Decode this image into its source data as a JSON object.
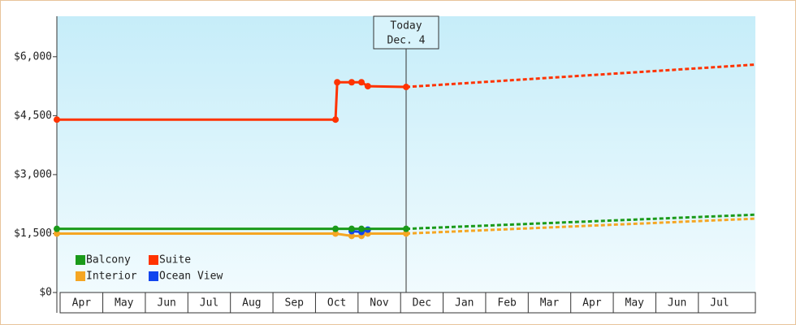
{
  "chart_data": {
    "type": "line",
    "categories": [
      "Apr",
      "May",
      "Jun",
      "Jul",
      "Aug",
      "Sep",
      "Oct",
      "Nov",
      "Dec",
      "Jan",
      "Feb",
      "Mar",
      "Apr",
      "May",
      "Jun",
      "Jul"
    ],
    "xlim": [
      -0.08,
      16.34
    ],
    "ylim": [
      0,
      7030
    ],
    "yticks": [
      {
        "value": 0,
        "label": "$0"
      },
      {
        "value": 1500,
        "label": "$1,500"
      },
      {
        "value": 3000,
        "label": "$3,000"
      },
      {
        "value": 4500,
        "label": "$4,500"
      },
      {
        "value": 6000,
        "label": "$6,000"
      }
    ],
    "grid": false,
    "today": {
      "x": 8.13,
      "label": [
        "Today",
        "Dec. 4"
      ]
    },
    "series": [
      {
        "name": "Balcony",
        "color": "#1a9a1a",
        "x": [
          -0.08,
          6.47,
          6.85,
          7.08,
          8.13
        ],
        "values": [
          1620,
          1620,
          1620,
          1620,
          1620
        ],
        "forecast": {
          "x": [
            8.13,
            16.34
          ],
          "values": [
            1620,
            1980
          ]
        }
      },
      {
        "name": "Suite",
        "color": "#ff3300",
        "x": [
          -0.08,
          6.47,
          6.51,
          6.85,
          7.08,
          7.23,
          8.13
        ],
        "values": [
          4400,
          4400,
          5350,
          5350,
          5350,
          5250,
          5230
        ],
        "forecast": {
          "x": [
            8.13,
            16.34
          ],
          "values": [
            5230,
            5800
          ]
        }
      },
      {
        "name": "Interior",
        "color": "#f5a623",
        "x": [
          -0.08,
          6.47,
          6.85,
          7.08,
          7.23,
          8.13
        ],
        "values": [
          1500,
          1500,
          1440,
          1440,
          1500,
          1500
        ],
        "forecast": {
          "x": [
            8.13,
            16.34
          ],
          "values": [
            1500,
            1880
          ]
        }
      },
      {
        "name": "Ocean View",
        "color": "#1144ee",
        "x": [
          6.85,
          7.08,
          7.23
        ],
        "values": [
          1560,
          1540,
          1600
        ]
      }
    ]
  }
}
